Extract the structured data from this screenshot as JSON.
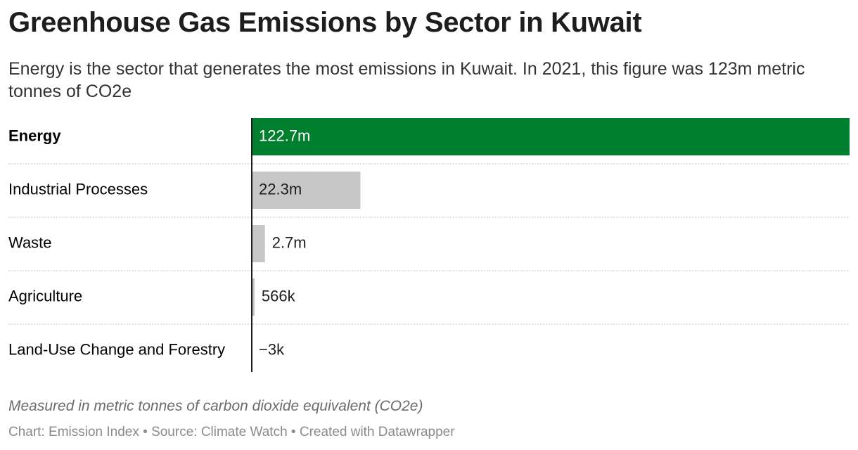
{
  "chart_data": {
    "type": "bar",
    "orientation": "horizontal",
    "title": "Greenhouse Gas Emissions by Sector in Kuwait",
    "subtitle": "Energy is the sector that generates the most emissions in Kuwait. In 2021, this figure was 123m metric tonnes of CO2e",
    "categories": [
      "Energy",
      "Industrial Processes",
      "Waste",
      "Agriculture",
      "Land-Use Change and Forestry"
    ],
    "values": [
      122700000,
      22300000,
      2700000,
      566000,
      -3000
    ],
    "value_labels": [
      "122.7m",
      "22.3m",
      "2.7m",
      "566k",
      "−3k"
    ],
    "colors": [
      "#00802f",
      "#c6c6c6",
      "#c6c6c6",
      "#c6c6c6",
      "#c6c6c6"
    ],
    "notes": "Measured in metric tonnes of carbon dioxide equivalent (CO2e)",
    "byline": "Chart: Emission Index • Source: Climate Watch • Created with Datawrapper"
  }
}
